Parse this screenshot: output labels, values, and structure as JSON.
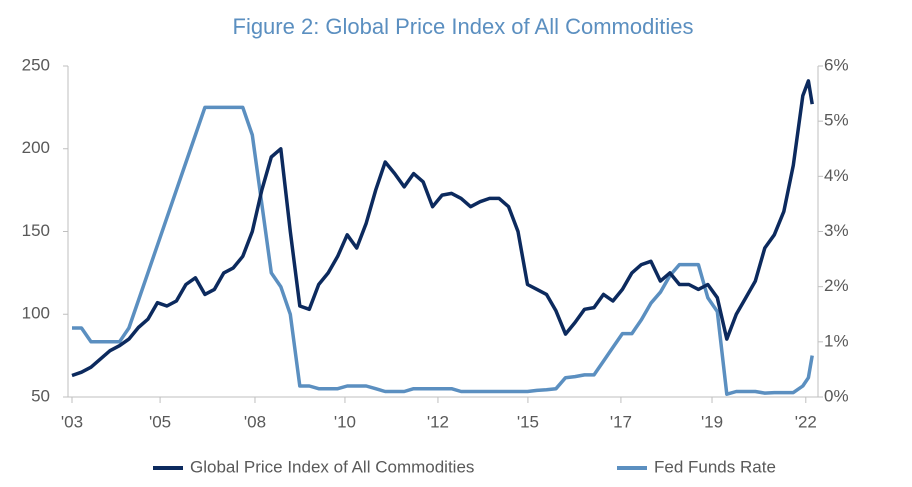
{
  "chart_data": {
    "type": "line",
    "title": "Figure 2: Global Price Index of All Commodities",
    "x": [
      2003.0,
      2003.25,
      2003.5,
      2003.75,
      2004.0,
      2004.25,
      2004.5,
      2004.75,
      2005.0,
      2005.25,
      2005.5,
      2005.75,
      2006.0,
      2006.25,
      2006.5,
      2006.75,
      2007.0,
      2007.25,
      2007.5,
      2007.75,
      2008.0,
      2008.25,
      2008.5,
      2008.75,
      2009.0,
      2009.25,
      2009.5,
      2009.75,
      2010.0,
      2010.25,
      2010.5,
      2010.75,
      2011.0,
      2011.25,
      2011.5,
      2011.75,
      2012.0,
      2012.25,
      2012.5,
      2012.75,
      2013.0,
      2013.25,
      2013.5,
      2013.75,
      2014.0,
      2014.25,
      2014.5,
      2014.75,
      2015.0,
      2015.25,
      2015.5,
      2015.75,
      2016.0,
      2016.25,
      2016.5,
      2016.75,
      2017.0,
      2017.25,
      2017.5,
      2017.75,
      2018.0,
      2018.25,
      2018.5,
      2018.75,
      2019.0,
      2019.25,
      2019.5,
      2019.75,
      2020.0,
      2020.25,
      2020.5,
      2020.75,
      2021.0,
      2021.25,
      2021.5,
      2021.75,
      2022.0,
      2022.25,
      2022.4,
      2022.5
    ],
    "series": [
      {
        "name": "Global Price Index of All Commodities",
        "color": "#0c2a5e",
        "axis": "y",
        "values": [
          63,
          65,
          68,
          73,
          78,
          81,
          85,
          92,
          97,
          107,
          105,
          108,
          118,
          122,
          112,
          115,
          125,
          128,
          135,
          150,
          175,
          195,
          200,
          150,
          105,
          103,
          118,
          125,
          135,
          148,
          140,
          155,
          175,
          192,
          185,
          177,
          185,
          180,
          165,
          172,
          173,
          170,
          165,
          168,
          170,
          170,
          165,
          150,
          118,
          115,
          112,
          102,
          88,
          95,
          103,
          104,
          112,
          108,
          115,
          125,
          130,
          132,
          120,
          125,
          118,
          118,
          115,
          118,
          110,
          85,
          100,
          110,
          120,
          140,
          148,
          162,
          190,
          232,
          241,
          227
        ]
      },
      {
        "name": "Fed Funds Rate",
        "color": "#5b8fc0",
        "axis": "y2",
        "values": [
          1.25,
          1.25,
          1.0,
          1.0,
          1.0,
          1.0,
          1.25,
          1.75,
          2.25,
          2.75,
          3.25,
          3.75,
          4.25,
          4.75,
          5.25,
          5.25,
          5.25,
          5.25,
          5.25,
          4.75,
          3.5,
          2.25,
          2.0,
          1.5,
          0.2,
          0.2,
          0.15,
          0.15,
          0.15,
          0.2,
          0.2,
          0.2,
          0.15,
          0.1,
          0.1,
          0.1,
          0.15,
          0.15,
          0.15,
          0.15,
          0.15,
          0.1,
          0.1,
          0.1,
          0.1,
          0.1,
          0.1,
          0.1,
          0.1,
          0.12,
          0.13,
          0.15,
          0.35,
          0.37,
          0.4,
          0.4,
          0.65,
          0.9,
          1.15,
          1.15,
          1.4,
          1.7,
          1.9,
          2.2,
          2.4,
          2.4,
          2.4,
          1.8,
          1.55,
          0.05,
          0.1,
          0.1,
          0.1,
          0.07,
          0.08,
          0.08,
          0.08,
          0.2,
          0.35,
          0.75
        ]
      }
    ],
    "xlim": [
      2003.0,
      2022.52
    ],
    "xticks": [
      {
        "value": 2003.0,
        "label": "'03"
      },
      {
        "value": 2005.32,
        "label": "'05"
      },
      {
        "value": 2007.82,
        "label": "'08"
      },
      {
        "value": 2010.19,
        "label": "'10"
      },
      {
        "value": 2012.64,
        "label": "'12"
      },
      {
        "value": 2015.01,
        "label": "'15"
      },
      {
        "value": 2017.46,
        "label": "'17"
      },
      {
        "value": 2019.86,
        "label": "'19"
      },
      {
        "value": 2022.33,
        "label": "'22"
      }
    ],
    "ylim": [
      50,
      250
    ],
    "yticks": [
      50,
      100,
      150,
      200,
      250
    ],
    "y2lim": [
      0,
      6
    ],
    "y2ticks": [
      {
        "value": 0,
        "label": "0%"
      },
      {
        "value": 1,
        "label": "1%"
      },
      {
        "value": 2,
        "label": "2%"
      },
      {
        "value": 3,
        "label": "3%"
      },
      {
        "value": 4,
        "label": "4%"
      },
      {
        "value": 5,
        "label": "5%"
      },
      {
        "value": 6,
        "label": "6%"
      }
    ],
    "legend": "bottom"
  }
}
